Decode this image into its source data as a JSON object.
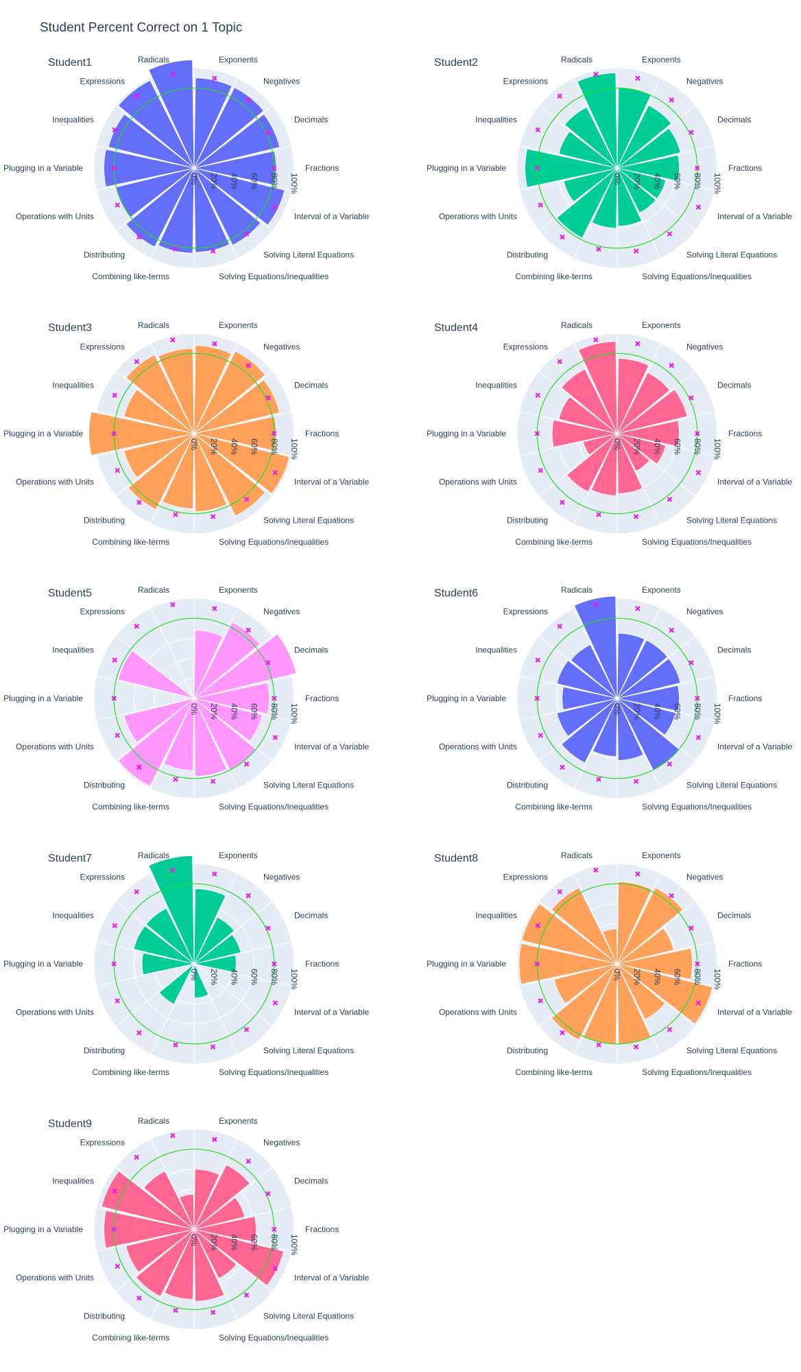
{
  "page": {
    "title": "Student Percent Correct on 1 Topic"
  },
  "chart_data": {
    "type": "polar-bar",
    "categories": [
      "Fractions",
      "Decimals",
      "Negatives",
      "Exponents",
      "Radicals",
      "Expressions",
      "Inequalities",
      "Plugging in a Variable",
      "Operations with Units",
      "Distributing",
      "Combining like-terms",
      "Solving Equations/Inequalities",
      "Solving Literal Equations",
      "Interval of a Variable"
    ],
    "radial_ticks": [
      "0%",
      "20%",
      "40%",
      "60%",
      "80%",
      "100%"
    ],
    "radial_range": [
      0,
      1
    ],
    "threshold_circle": 0.8,
    "colors": {
      "grid_background": "#e5ecf6",
      "grid_lines": "#ffffff",
      "threshold": "#22dd22",
      "marker": "#e81ee8"
    },
    "marker_values": [
      0.8,
      0.82,
      0.87,
      0.92,
      0.96,
      0.92,
      0.88,
      0.8,
      0.85,
      0.88,
      0.83,
      0.85,
      0.84,
      0.9
    ],
    "subplots": [
      {
        "title": "Student1",
        "color": "#636efa",
        "values": [
          0.82,
          0.88,
          0.9,
          0.9,
          1.08,
          0.98,
          0.88,
          0.9,
          0.8,
          0.88,
          0.85,
          0.84,
          0.86,
          0.93
        ]
      },
      {
        "title": "Student2",
        "color": "#00cc96",
        "values": [
          0.62,
          0.65,
          0.7,
          0.8,
          0.95,
          0.68,
          0.6,
          0.92,
          0.55,
          0.78,
          0.6,
          0.58,
          0.5,
          0.5
        ]
      },
      {
        "title": "Student3",
        "color": "#ffa15a",
        "values": [
          0.82,
          0.88,
          0.92,
          0.88,
          0.85,
          0.88,
          0.72,
          1.05,
          0.72,
          0.85,
          0.75,
          0.78,
          0.92,
          0.98
        ]
      },
      {
        "title": "Student4",
        "color": "#ff6692",
        "values": [
          0.62,
          0.72,
          0.68,
          0.75,
          0.92,
          0.72,
          0.6,
          0.65,
          0.35,
          0.65,
          0.62,
          0.6,
          0.42,
          0.5
        ]
      },
      {
        "title": "Student5",
        "color": "#ff97ff",
        "values": [
          0.75,
          1.05,
          0.85,
          0.68,
          0.0,
          0.0,
          0.78,
          0.0,
          0.72,
          0.98,
          0.72,
          0.78,
          0.8,
          0.7
        ]
      },
      {
        "title": "Student6",
        "color": "#636efa",
        "values": [
          0.62,
          0.65,
          0.65,
          0.65,
          1.02,
          0.6,
          0.62,
          0.55,
          0.62,
          0.72,
          0.58,
          0.62,
          0.8,
          0.6
        ]
      },
      {
        "title": "Student7",
        "color": "#00cc96",
        "values": [
          0.42,
          0.48,
          0.52,
          0.75,
          1.08,
          0.62,
          0.62,
          0.52,
          0.0,
          0.45,
          0.0,
          0.34,
          0.0,
          0.0
        ]
      },
      {
        "title": "Student8",
        "color": "#ffa15a",
        "values": [
          0.75,
          0.58,
          0.85,
          0.82,
          0.35,
          0.85,
          0.98,
          0.98,
          0.65,
          0.85,
          0.8,
          0.8,
          0.62,
          0.98
        ]
      },
      {
        "title": "Student9",
        "color": "#ff6692",
        "values": [
          0.62,
          0.52,
          0.72,
          0.6,
          0.35,
          0.65,
          0.95,
          0.9,
          0.7,
          0.75,
          0.7,
          0.72,
          0.55,
          0.92
        ]
      }
    ]
  }
}
